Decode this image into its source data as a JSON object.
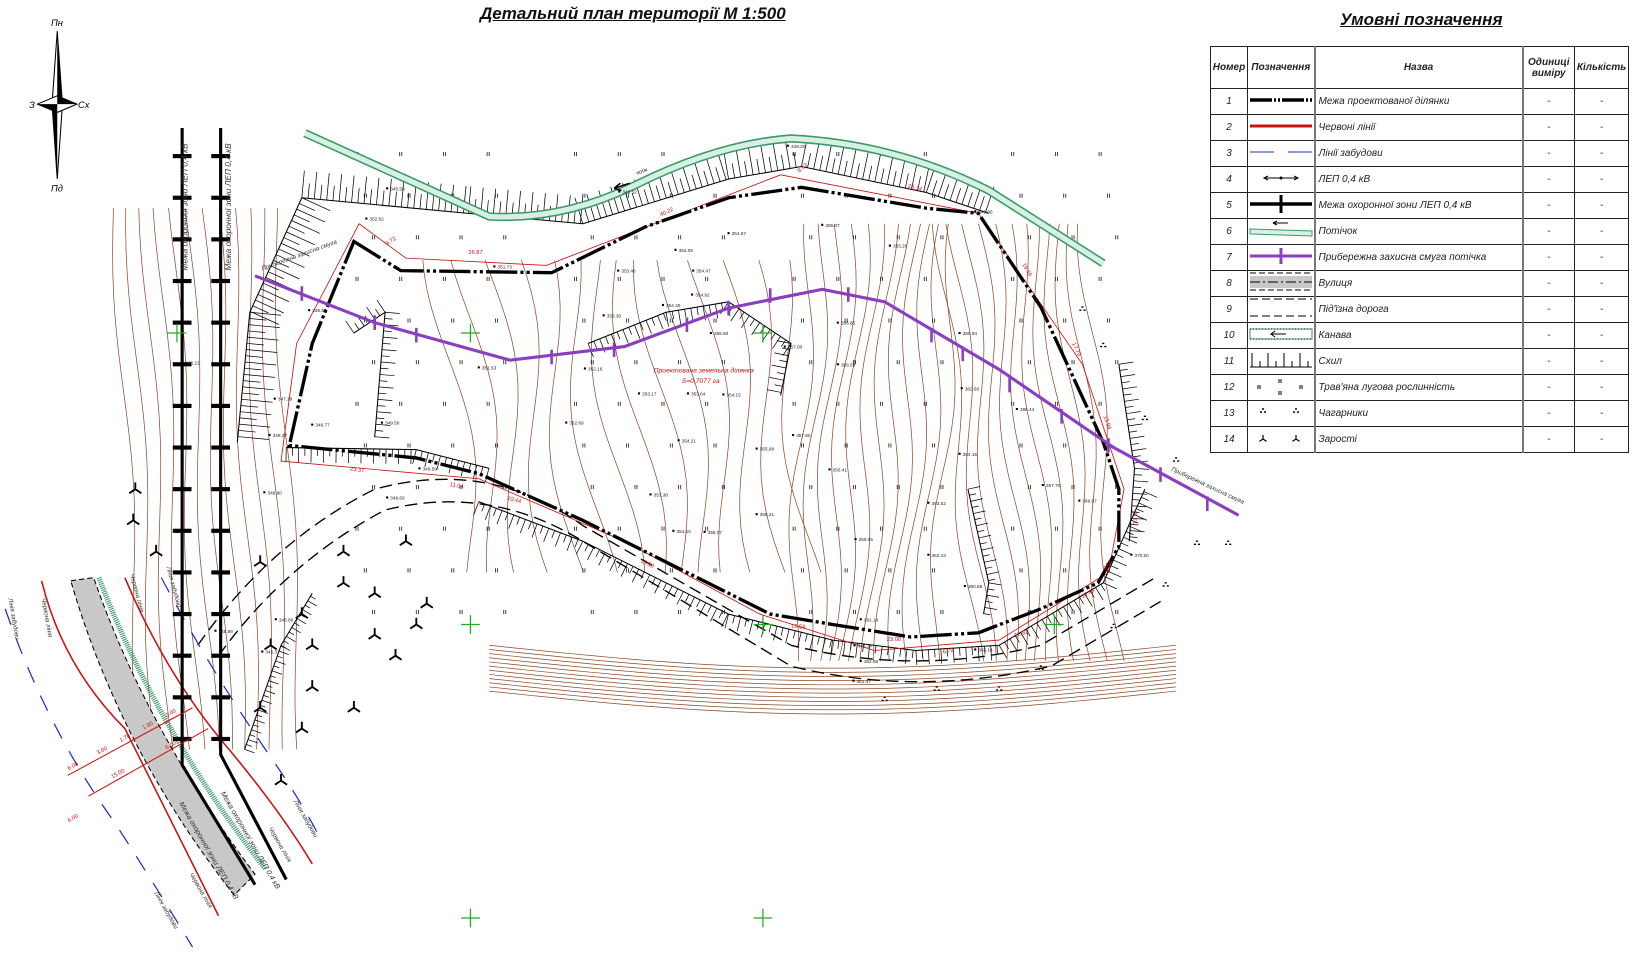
{
  "title": "Детальний план території М 1:500",
  "compass": {
    "north": "Пн",
    "south": "Пд",
    "west": "З",
    "east": "Сх"
  },
  "legend": {
    "title": "Умовні позначення",
    "headers": {
      "number": "Номер",
      "symbol": "Позначення",
      "name": "Назва",
      "unit": "Одиниці виміру",
      "qty": "Кількість"
    },
    "rows": [
      {
        "num": "1",
        "symbol": "boundary-line",
        "name": "Межа проектованої ділянки",
        "unit": "-",
        "qty": "-"
      },
      {
        "num": "2",
        "symbol": "red-line",
        "name": "Червоні лінії",
        "unit": "-",
        "qty": "-"
      },
      {
        "num": "3",
        "symbol": "building-line",
        "name": "Лінії забудови",
        "unit": "-",
        "qty": "-"
      },
      {
        "num": "4",
        "symbol": "power-line",
        "name": "ЛЕП 0,4 кВ",
        "unit": "-",
        "qty": "-"
      },
      {
        "num": "5",
        "symbol": "power-zone",
        "name": "Межа охоронної зони ЛЕП 0,4 кВ",
        "unit": "-",
        "qty": "-"
      },
      {
        "num": "6",
        "symbol": "stream",
        "name": "Потічок",
        "unit": "-",
        "qty": "-"
      },
      {
        "num": "7",
        "symbol": "coastal-strip",
        "name": "Прибережна захисна смуга потічка",
        "unit": "-",
        "qty": "-"
      },
      {
        "num": "8",
        "symbol": "street",
        "name": "Вулиця",
        "unit": "-",
        "qty": "-"
      },
      {
        "num": "9",
        "symbol": "access-road",
        "name": "Під'їзна дорога",
        "unit": "-",
        "qty": "-"
      },
      {
        "num": "10",
        "symbol": "ditch",
        "name": "Канава",
        "unit": "-",
        "qty": "-"
      },
      {
        "num": "11",
        "symbol": "slope",
        "name": "Схил",
        "unit": "-",
        "qty": "-"
      },
      {
        "num": "12",
        "symbol": "meadow",
        "name": "Трав'яна лугова рослинність",
        "unit": "-",
        "qty": "-"
      },
      {
        "num": "13",
        "symbol": "shrubs",
        "name": "Чагарники",
        "unit": "-",
        "qty": "-"
      },
      {
        "num": "14",
        "symbol": "thickets",
        "name": "Зарості",
        "unit": "-",
        "qty": "-"
      }
    ]
  },
  "colors": {
    "boundary": "#000000",
    "red_line": "#cc1111",
    "building_line": "#2233bb",
    "stream": "#3a9a6a",
    "stream_fill": "#d8f0e4",
    "coastal_strip": "#8a3fc0",
    "contour": "#8b4a2b",
    "street": "#c8c8c8",
    "grid_cross": "#22aa22"
  },
  "map": {
    "parcel_label": "Проектована земельна ділянка",
    "parcel_area": "S=0,7077 га",
    "stream_label": "потік",
    "power_zone_label": "Межа охоронної зони ЛЕП 0,4 кВ",
    "red_line_label": "Червона лінія",
    "building_line_label": "Лінія забудови",
    "coastal_strip_label": "Прибережна захисна смуга",
    "elevations": [
      "349.20",
      "345.50",
      "346.52",
      "349.66",
      "352.62",
      "365.07",
      "355.20",
      "354.09",
      "354.67",
      "353.46",
      "354.47",
      "351.73",
      "352.16",
      "351.53",
      "353.30",
      "354.40",
      "354.92",
      "355.60",
      "357.00",
      "356.85",
      "358.59",
      "360.94",
      "362.60",
      "364.15",
      "366.44",
      "367.70",
      "369.67",
      "370.50",
      "363.52",
      "362.43",
      "361.14",
      "360.88",
      "358.05",
      "357.80",
      "356.41",
      "355.98",
      "355.21",
      "355.07",
      "354.10",
      "353.38",
      "354.21",
      "353.17",
      "353.64",
      "354.15",
      "352.69",
      "349.50",
      "349.59",
      "349.69",
      "348.77",
      "349.53",
      "346.90",
      "345.80",
      "345.89",
      "345.37",
      "346.21",
      "349.27",
      "347.18",
      "348.14",
      "361.47",
      "362.68",
      "363.14"
    ],
    "dimensions": [
      "9.72",
      "26.87",
      "40.22",
      "8.53",
      "28.34",
      "19.66",
      "17.79",
      "13.94",
      "15.71",
      "23.37",
      "11.04",
      "10.44",
      "13.59",
      "15.59",
      "23.00",
      "6.79",
      "10.82",
      "10.48",
      "8.04",
      "6.00",
      "3.00",
      "1.70",
      "1.90",
      "2.40",
      "6.00",
      "15.00",
      "6.00"
    ]
  }
}
